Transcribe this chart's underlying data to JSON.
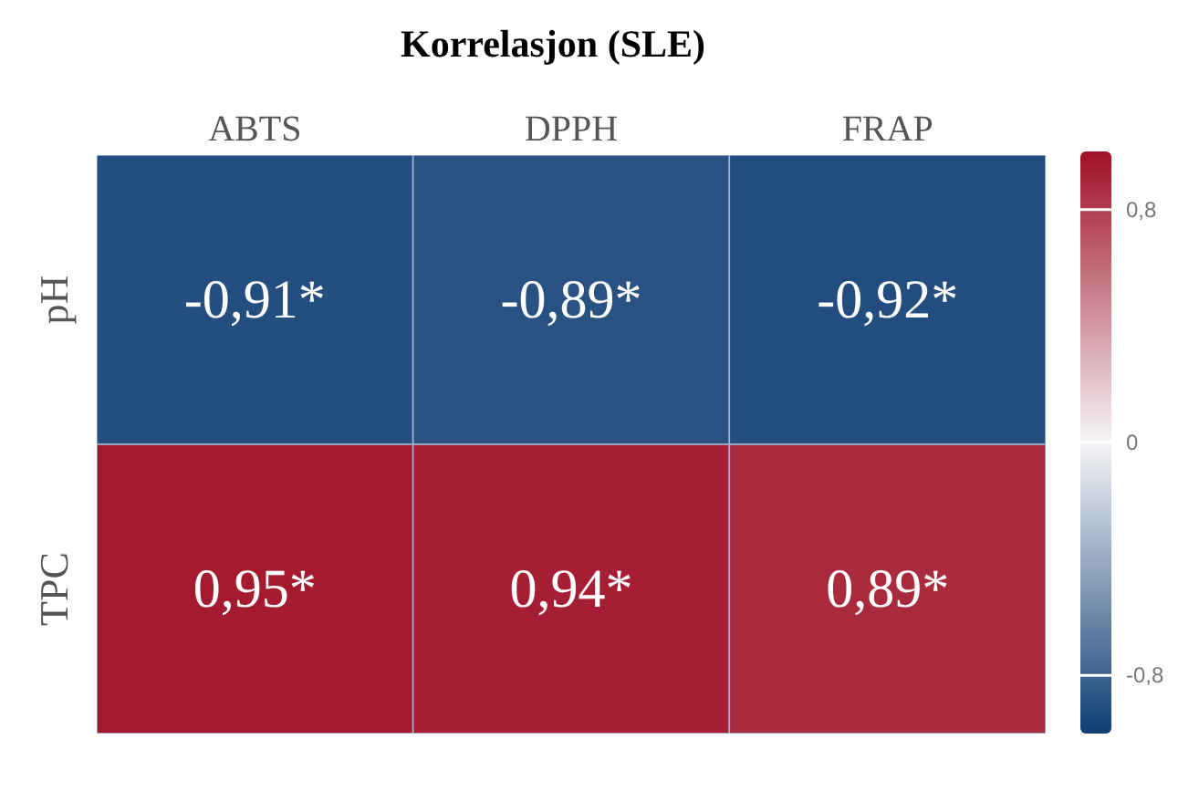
{
  "chart_data": {
    "type": "heatmap",
    "title": "Korrelasjon (SLE)",
    "categories": [
      "ABTS",
      "DPPH",
      "FRAP"
    ],
    "y_categories": [
      "pH",
      "TPC"
    ],
    "cells": [
      [
        -0.91,
        -0.89,
        -0.92
      ],
      [
        0.95,
        0.94,
        0.89
      ]
    ],
    "cell_labels": [
      [
        "-0,91*",
        "-0,89*",
        "-0,92*"
      ],
      [
        "0,95*",
        "0,94*",
        "0,89*"
      ]
    ],
    "clim": [
      -1,
      1
    ],
    "cticks": [
      {
        "value": 0.8,
        "label": "0,8"
      },
      {
        "value": 0,
        "label": "0"
      },
      {
        "value": -0.8,
        "label": "-0,8"
      }
    ]
  }
}
